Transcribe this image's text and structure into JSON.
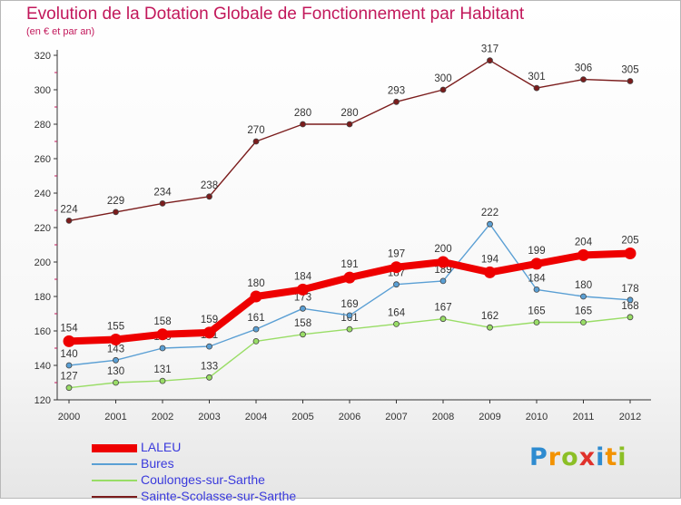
{
  "title": "Evolution de la Dotation Globale de Fonctionnement par Habitant",
  "subtitle": "(en € et par an)",
  "logo": {
    "text": "Proxiti",
    "letters": [
      {
        "ch": "P",
        "color": "#2e8bd0"
      },
      {
        "ch": "r",
        "color": "#f39200"
      },
      {
        "ch": "o",
        "color": "#8cbf26"
      },
      {
        "ch": "x",
        "color": "#e0312b"
      },
      {
        "ch": "i",
        "color": "#2e8bd0"
      },
      {
        "ch": "t",
        "color": "#f39200"
      },
      {
        "ch": "i",
        "color": "#8cbf26"
      }
    ]
  },
  "chart_data": {
    "type": "line",
    "x": [
      "2000",
      "2001",
      "2002",
      "2003",
      "2004",
      "2005",
      "2006",
      "2007",
      "2008",
      "2009",
      "2010",
      "2011",
      "2012"
    ],
    "ylim": [
      120,
      320
    ],
    "yticks": [
      120,
      140,
      160,
      180,
      200,
      220,
      240,
      260,
      280,
      300,
      320
    ],
    "grid": false,
    "legend_position": "bottom-left",
    "series": [
      {
        "name": "Sainte-Scolasse-sur-Sarthe",
        "color": "#7b1c1c",
        "emphasis": false,
        "values": [
          224,
          229,
          234,
          238,
          270,
          280,
          280,
          293,
          300,
          317,
          301,
          306,
          305
        ],
        "labels": [
          "224",
          "229",
          "234",
          "238",
          "270",
          "280",
          "280",
          "293",
          "300",
          "317",
          "301",
          "306",
          "305"
        ]
      },
      {
        "name": "Coulonges-sur-Sarthe",
        "color": "#99dd66",
        "emphasis": false,
        "values": [
          127,
          130,
          131,
          133,
          154,
          158,
          161,
          164,
          167,
          162,
          165,
          165,
          168
        ],
        "labels": [
          "127",
          "130",
          "131",
          "133",
          "",
          "158",
          "161",
          "164",
          "167",
          "162",
          "165",
          "165",
          "168"
        ]
      },
      {
        "name": "Bures",
        "color": "#5a9fd4",
        "emphasis": false,
        "values": [
          140,
          143,
          150,
          151,
          161,
          173,
          169,
          187,
          189,
          222,
          184,
          180,
          178
        ],
        "labels": [
          "140",
          "143",
          "150",
          "151",
          "161",
          "173",
          "169",
          "187",
          "189",
          "222",
          "184",
          "180",
          "178"
        ]
      },
      {
        "name": "LALEU",
        "color": "#ee0000",
        "emphasis": true,
        "values": [
          154,
          155,
          158,
          159,
          180,
          184,
          191,
          197,
          200,
          194,
          199,
          204,
          205
        ],
        "labels": [
          "154",
          "155",
          "158",
          "159",
          "180",
          "184",
          "191",
          "197",
          "200",
          "194",
          "199",
          "204",
          "205"
        ]
      }
    ],
    "legend_order": [
      "LALEU",
      "Bures",
      "Coulonges-sur-Sarthe",
      "Sainte-Scolasse-sur-Sarthe"
    ],
    "legend_text_color": "#3a3adc"
  }
}
